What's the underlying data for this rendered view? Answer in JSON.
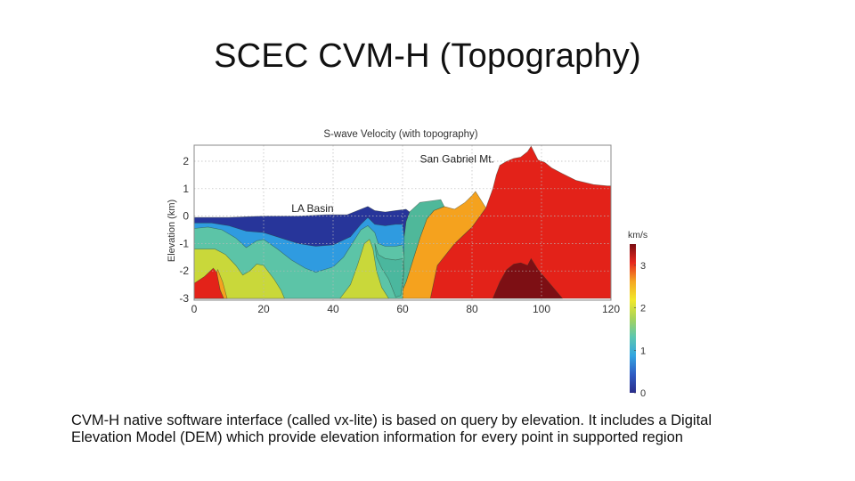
{
  "slide": {
    "title": "SCEC CVM-H (Topography)",
    "caption_lines": [
      "CVM-H native software interface (called vx-lite) is based on query by elevation. It includes a Digital",
      "Elevation Model (DEM) which provide elevation information for every point in supported region"
    ]
  },
  "chart_data": {
    "type": "heatmap",
    "title": "S-wave Velocity (with topography)",
    "xlabel": "",
    "ylabel": "Elevation (km)",
    "xlim": [
      0,
      120
    ],
    "ylim": [
      -3,
      2.6
    ],
    "xticks": [
      0,
      20,
      40,
      60,
      80,
      100,
      120
    ],
    "yticks": [
      2,
      1,
      0,
      -1,
      -2,
      -3
    ],
    "grid": true,
    "annotations": [
      {
        "text": "LA Basin",
        "x": 28,
        "y": 0.15
      },
      {
        "text": "San Gabriel Mt.",
        "x": 65,
        "y": 1.95
      }
    ],
    "colorbar": {
      "label": "km/s",
      "ticks": [
        0,
        1,
        2,
        3
      ],
      "range": [
        0,
        3.5
      ],
      "colors": [
        "#2a2d8a",
        "#2f5cc4",
        "#33a5e0",
        "#5cc7b0",
        "#a7d35a",
        "#f2e82a",
        "#f5a623",
        "#e8281e",
        "#7a0c12"
      ]
    },
    "layers": [
      {
        "name": "v~3.0 crystalline (red)",
        "color": "#e32219",
        "points": [
          [
            0,
            -3
          ],
          [
            0,
            -2.45
          ],
          [
            3,
            -2.2
          ],
          [
            6,
            -1.95
          ],
          [
            7,
            -2.1
          ],
          [
            8,
            -3
          ],
          [
            68,
            -3
          ],
          [
            70,
            -1.8
          ],
          [
            75,
            -1
          ],
          [
            80,
            -0.4
          ],
          [
            84,
            0.3
          ],
          [
            86,
            1.0
          ],
          [
            87,
            1.5
          ],
          [
            88,
            1.85
          ],
          [
            90,
            2.0
          ],
          [
            92,
            2.1
          ],
          [
            94,
            2.15
          ],
          [
            96,
            2.35
          ],
          [
            97,
            2.55
          ],
          [
            98,
            2.3
          ],
          [
            99,
            2.05
          ],
          [
            101,
            1.95
          ],
          [
            103,
            1.75
          ],
          [
            106,
            1.55
          ],
          [
            110,
            1.3
          ],
          [
            115,
            1.15
          ],
          [
            119,
            1.1
          ],
          [
            120,
            1.1
          ],
          [
            120,
            -3
          ]
        ]
      },
      {
        "name": "v~3.4 deep (dark red)",
        "color": "#7d0f14",
        "points": [
          [
            86,
            -3
          ],
          [
            88,
            -2.4
          ],
          [
            90,
            -1.95
          ],
          [
            92,
            -1.75
          ],
          [
            94,
            -1.7
          ],
          [
            96,
            -1.8
          ],
          [
            97,
            -1.55
          ],
          [
            99,
            -1.95
          ],
          [
            101,
            -2.25
          ],
          [
            103,
            -2.55
          ],
          [
            106,
            -3
          ]
        ]
      },
      {
        "name": "v~2.6 (orange)",
        "color": "#f5a21e",
        "points": [
          [
            59,
            -3
          ],
          [
            61,
            -2.4
          ],
          [
            63,
            -1.6
          ],
          [
            65,
            -0.8
          ],
          [
            67,
            -0.1
          ],
          [
            69,
            0.2
          ],
          [
            72,
            0.35
          ],
          [
            75,
            0.25
          ],
          [
            78,
            0.5
          ],
          [
            80,
            0.75
          ],
          [
            81,
            0.9
          ],
          [
            84,
            0.3
          ],
          [
            80,
            -0.4
          ],
          [
            75,
            -1
          ],
          [
            70,
            -1.8
          ],
          [
            68,
            -3
          ]
        ]
      },
      {
        "name": "v~1.5 (teal band east)",
        "color": "#4fb89a",
        "points": [
          [
            58,
            -3
          ],
          [
            59,
            -2.2
          ],
          [
            60,
            -1.2
          ],
          [
            61,
            -0.2
          ],
          [
            62,
            0.15
          ],
          [
            65,
            0.5
          ],
          [
            68,
            0.55
          ],
          [
            71,
            0.6
          ],
          [
            72,
            0.35
          ],
          [
            69,
            0.2
          ],
          [
            67,
            -0.1
          ],
          [
            65,
            -0.8
          ],
          [
            63,
            -1.6
          ],
          [
            61,
            -2.4
          ],
          [
            59,
            -3
          ]
        ]
      },
      {
        "name": "v~0.5 sediments top (navy)",
        "color": "#27359a",
        "points": [
          [
            0,
            -0.05
          ],
          [
            10,
            -0.05
          ],
          [
            20,
            0.0
          ],
          [
            30,
            0.0
          ],
          [
            38,
            0.05
          ],
          [
            44,
            0.05
          ],
          [
            48,
            0.25
          ],
          [
            50,
            0.35
          ],
          [
            52,
            0.2
          ],
          [
            55,
            0.15
          ],
          [
            58,
            0.2
          ],
          [
            61,
            0.25
          ],
          [
            62,
            0.15
          ],
          [
            61,
            -0.2
          ],
          [
            60,
            -1.2
          ],
          [
            59,
            -2.2
          ],
          [
            58,
            -3
          ],
          [
            0,
            -3
          ]
        ]
      },
      {
        "name": "v~0.8 (blue)",
        "color": "#2f9be0",
        "points": [
          [
            0,
            -0.25
          ],
          [
            5,
            -0.25
          ],
          [
            10,
            -0.35
          ],
          [
            15,
            -0.55
          ],
          [
            20,
            -0.6
          ],
          [
            25,
            -0.8
          ],
          [
            30,
            -1.0
          ],
          [
            35,
            -1.1
          ],
          [
            40,
            -1.05
          ],
          [
            45,
            -0.75
          ],
          [
            48,
            -0.3
          ],
          [
            50,
            -0.05
          ],
          [
            52,
            -0.3
          ],
          [
            55,
            -0.35
          ],
          [
            58,
            -0.3
          ],
          [
            60,
            -0.3
          ],
          [
            60.5,
            -0.8
          ],
          [
            60,
            -3
          ],
          [
            0,
            -3
          ]
        ]
      },
      {
        "name": "v~1.3 (green-teal)",
        "color": "#5cc4a7",
        "points": [
          [
            0,
            -0.45
          ],
          [
            4,
            -0.4
          ],
          [
            8,
            -0.5
          ],
          [
            12,
            -0.8
          ],
          [
            15,
            -1.15
          ],
          [
            18,
            -0.9
          ],
          [
            20,
            -0.85
          ],
          [
            24,
            -1.2
          ],
          [
            28,
            -1.6
          ],
          [
            32,
            -1.9
          ],
          [
            35,
            -2.05
          ],
          [
            40,
            -1.85
          ],
          [
            43,
            -1.5
          ],
          [
            46,
            -0.9
          ],
          [
            48,
            -0.5
          ],
          [
            50,
            -0.35
          ],
          [
            52,
            -0.6
          ],
          [
            53,
            -1.0
          ],
          [
            55,
            -1.1
          ],
          [
            58,
            -1.1
          ],
          [
            60,
            -1.05
          ],
          [
            60.5,
            -1.5
          ],
          [
            60,
            -3
          ],
          [
            0,
            -3
          ]
        ]
      },
      {
        "name": "v~1.5 (teal inner)",
        "color": "#4bb79e",
        "points": [
          [
            52,
            -1.0
          ],
          [
            53,
            -1.4
          ],
          [
            55,
            -1.55
          ],
          [
            58,
            -1.6
          ],
          [
            60,
            -1.55
          ],
          [
            60.3,
            -2.0
          ],
          [
            59.5,
            -2.9
          ],
          [
            58,
            -2.95
          ],
          [
            56,
            -2.3
          ],
          [
            54,
            -1.9
          ],
          [
            52.5,
            -1.5
          ]
        ]
      },
      {
        "name": "v~2.0 (yellow-green)",
        "color": "#c9d83a",
        "points": [
          [
            0,
            -1.2
          ],
          [
            6,
            -1.2
          ],
          [
            9,
            -1.4
          ],
          [
            12,
            -1.8
          ],
          [
            14,
            -2.15
          ],
          [
            16,
            -2.0
          ],
          [
            18,
            -1.75
          ],
          [
            20,
            -1.8
          ],
          [
            23,
            -2.3
          ],
          [
            25,
            -2.7
          ],
          [
            26,
            -3
          ],
          [
            0,
            -3
          ]
        ]
      },
      {
        "name": "v~2.0 ridge (yellow-green)",
        "color": "#c9d83a",
        "points": [
          [
            42,
            -3
          ],
          [
            45,
            -2.5
          ],
          [
            47,
            -1.8
          ],
          [
            49,
            -1.0
          ],
          [
            50.5,
            -0.85
          ],
          [
            51.5,
            -1.2
          ],
          [
            52.5,
            -2.0
          ],
          [
            54,
            -2.6
          ],
          [
            56,
            -3
          ]
        ]
      },
      {
        "name": "v~2.8 (red, SW corner)",
        "color": "#e32219",
        "points": [
          [
            0,
            -3
          ],
          [
            0,
            -2.45
          ],
          [
            3,
            -2.2
          ],
          [
            5.5,
            -1.9
          ],
          [
            6.5,
            -2.05
          ],
          [
            7.5,
            -2.7
          ],
          [
            8.5,
            -3
          ]
        ]
      },
      {
        "name": "v~2.6 (orange sliver)",
        "color": "#f5a21e",
        "points": [
          [
            7.5,
            -2.7
          ],
          [
            8.5,
            -3
          ],
          [
            9.5,
            -3
          ],
          [
            8.2,
            -2.4
          ],
          [
            6.8,
            -1.95
          ],
          [
            6.5,
            -2.05
          ]
        ]
      }
    ]
  }
}
